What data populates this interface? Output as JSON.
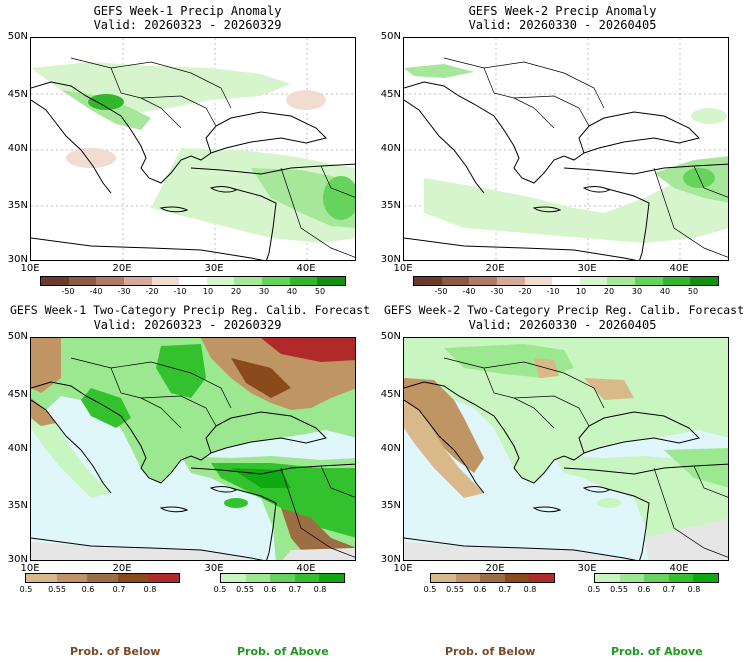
{
  "panels": {
    "w1_anom": {
      "title": "GEFS Week-1 Precip Anomaly",
      "valid": "Valid: 20260323 - 20260329"
    },
    "w2_anom": {
      "title": "GEFS Week-2 Precip Anomaly",
      "valid": "Valid: 20260330 - 20260405"
    },
    "w1_prob": {
      "title": "GEFS Week-1 Two-Category Precip Reg. Calib. Forecast",
      "valid": "Valid: 20260323 - 20260329"
    },
    "w2_prob": {
      "title": "GEFS Week-2 Two-Category Precip Reg. Calib. Forecast",
      "valid": "Valid: 20260330 - 20260405"
    }
  },
  "axes": {
    "lat": [
      "50N",
      "45N",
      "40N",
      "35N",
      "30N"
    ],
    "lon": [
      "10E",
      "20E",
      "30E",
      "40E"
    ]
  },
  "anomaly_scale": {
    "labels": [
      "-50",
      "-40",
      "-30",
      "-20",
      "-10",
      "10",
      "20",
      "30",
      "40",
      "50"
    ],
    "colors": [
      "#6b3a2a",
      "#8c5a46",
      "#b07a66",
      "#d6aa99",
      "#f1dcd2",
      "#ffffff",
      "#d7f5cc",
      "#a6e79a",
      "#66d35c",
      "#33b52e",
      "#138f15"
    ]
  },
  "prob_below_scale": {
    "labels": [
      "0.5",
      "0.55",
      "0.6",
      "0.7",
      "0.8"
    ],
    "colors": [
      "#d9b98a",
      "#bf9564",
      "#9c6e44",
      "#8a4a1c",
      "#b02a2a"
    ]
  },
  "prob_above_scale": {
    "labels": [
      "0.5",
      "0.55",
      "0.6",
      "0.7",
      "0.8"
    ],
    "colors": [
      "#c8f5c0",
      "#9be890",
      "#66d35c",
      "#33c22e",
      "#0faa12"
    ]
  },
  "legend": {
    "below": "Prob. of Below",
    "above": "Prob. of Above",
    "below_color": "#7a4a2a",
    "above_color": "#1e9a1e"
  },
  "colors": {
    "sea_prob": "#dff6fb",
    "no_data": "#e6e6e6",
    "border": "#000000"
  }
}
